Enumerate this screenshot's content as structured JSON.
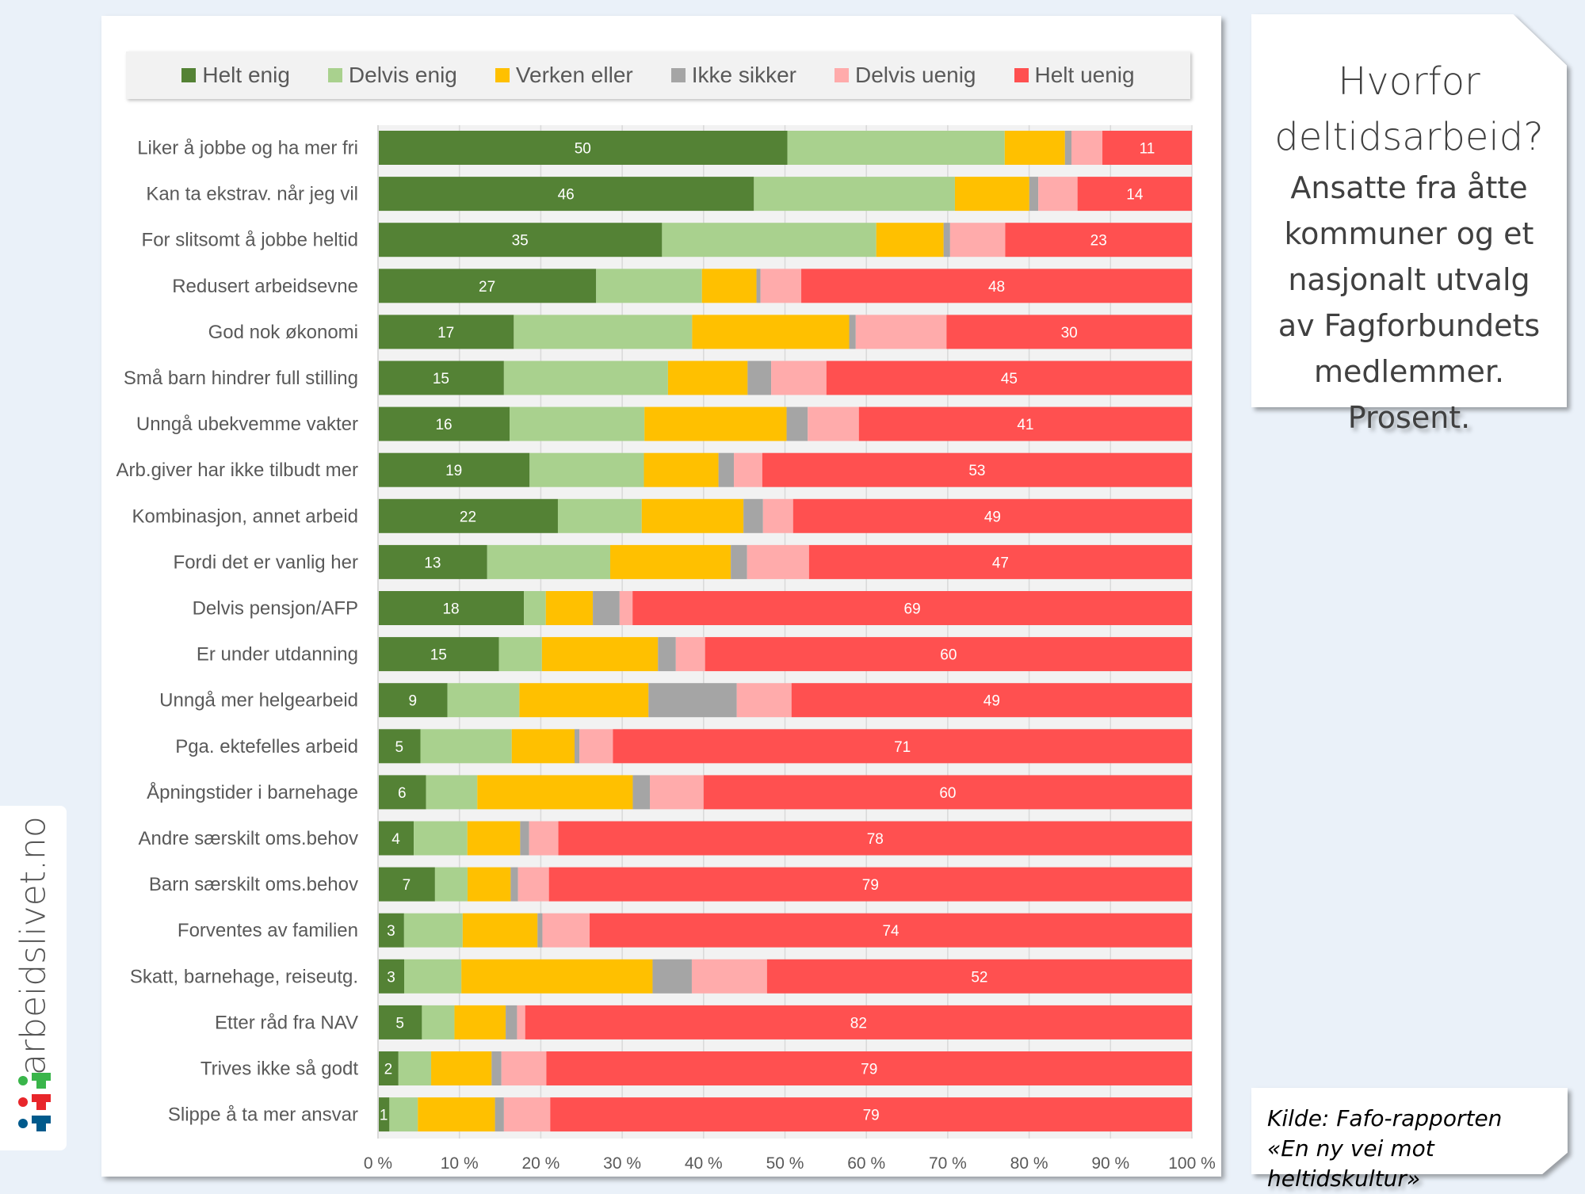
{
  "title_box": {
    "title_lines": [
      "Hvorfor",
      "deltidsarbeid?"
    ],
    "subtitle_lines": [
      "Ansatte fra åtte",
      "kommuner og et",
      "nasjonalt utvalg",
      "av Fagforbundets",
      "medlemmer.",
      "Prosent."
    ]
  },
  "source_box": {
    "lines": [
      "Kilde: Fafo-rapporten",
      "«En ny vei mot heltidskultur»"
    ]
  },
  "logo": {
    "text": "arbeidslivet.no",
    "icon_colors": [
      "#39B54A",
      "#E8262B",
      "#005A8C"
    ]
  },
  "chart_data": {
    "type": "bar",
    "orientation": "horizontal",
    "stacked": "percent",
    "title": "Hvorfor deltidsarbeid?",
    "xlabel": "",
    "ylabel": "",
    "xlim": [
      0,
      100
    ],
    "x_ticks": [
      "0 %",
      "10 %",
      "20 %",
      "30 %",
      "40 %",
      "50 %",
      "60 %",
      "70 %",
      "80 %",
      "90 %",
      "100 %"
    ],
    "grid": true,
    "legend_position": "top",
    "categories": [
      "Liker å jobbe og  ha mer fri",
      "Kan ta ekstrav. når jeg vil",
      "For slitsomt å jobbe heltid",
      "Redusert arbeidsevne",
      "God nok økonomi",
      "Små barn hindrer full stilling",
      "Unngå ubekvemme vakter",
      "Arb.giver har ikke tilbudt mer",
      "Kombinasjon, annet arbeid",
      "Fordi det er vanlig her",
      "Delvis pensjon/AFP",
      "Er under utdanning",
      "Unngå mer helgearbeid",
      "Pga. ektefelles arbeid",
      "Åpningstider i barnehage",
      "Andre særskilt oms.behov",
      "Barn særskilt oms.behov",
      "Forventes av familien",
      "Skatt, barnehage, reiseutg.",
      "Etter råd fra NAV",
      "Trives ikke så godt",
      "Slippe å ta mer ansvar"
    ],
    "series": [
      {
        "name": "Helt enig",
        "color": "#548235",
        "labeled": true,
        "values": [
          50,
          46,
          35,
          27,
          17,
          15,
          16,
          19,
          22,
          13,
          18,
          15,
          9,
          5,
          6,
          4,
          7,
          3,
          3,
          5,
          2,
          1
        ],
        "value_precise": [
          50.3,
          46,
          35,
          26.8,
          16.6,
          15.5,
          16.2,
          18.7,
          22.1,
          13.4,
          18.0,
          14.9,
          8.5,
          5.2,
          5.9,
          4.4,
          7.0,
          3.2,
          3.2,
          5.4,
          2.5,
          1.4
        ]
      },
      {
        "name": "Delvis enig",
        "color": "#A9D18E",
        "labeled": false,
        "values": [
          26.7,
          24.6,
          26.4,
          13.0,
          21.8,
          20.2,
          16.6,
          14.1,
          10.3,
          15.1,
          2.7,
          5.3,
          8.8,
          11.2,
          6.3,
          6.6,
          4.0,
          7.2,
          7.0,
          4.0,
          4.0,
          3.5
        ]
      },
      {
        "name": "Verken eller",
        "color": "#FFC000",
        "labeled": false,
        "values": [
          7.4,
          9.1,
          8.3,
          6.7,
          19.2,
          9.8,
          17.5,
          9.2,
          12.5,
          14.8,
          5.8,
          14.3,
          15.8,
          7.7,
          19.1,
          6.5,
          5.3,
          9.2,
          23.4,
          6.3,
          7.4,
          9.5
        ]
      },
      {
        "name": "Ikke sikker",
        "color": "#A5A5A5",
        "labeled": false,
        "values": [
          0.8,
          1.1,
          0.8,
          0.5,
          0.8,
          2.9,
          2.6,
          1.9,
          2.4,
          2.0,
          3.3,
          2.2,
          10.8,
          0.6,
          2.1,
          1.1,
          0.9,
          0.6,
          4.8,
          1.4,
          1.2,
          1.1
        ]
      },
      {
        "name": "Delvis uenig",
        "color": "#FFABAB",
        "labeled": false,
        "values": [
          3.8,
          4.8,
          6.8,
          5.0,
          11.1,
          6.8,
          6.3,
          3.5,
          3.7,
          7.6,
          1.6,
          3.6,
          6.7,
          4.1,
          6.6,
          3.6,
          3.8,
          5.8,
          9.2,
          1.0,
          5.5,
          5.7
        ]
      },
      {
        "name": "Helt uenig",
        "color": "#FF5050",
        "labeled": true,
        "values": [
          11,
          14,
          23,
          48,
          30,
          45,
          41,
          53,
          49,
          47,
          69,
          60,
          49,
          71,
          60,
          78,
          79,
          74,
          52,
          82,
          79,
          79
        ]
      }
    ]
  }
}
